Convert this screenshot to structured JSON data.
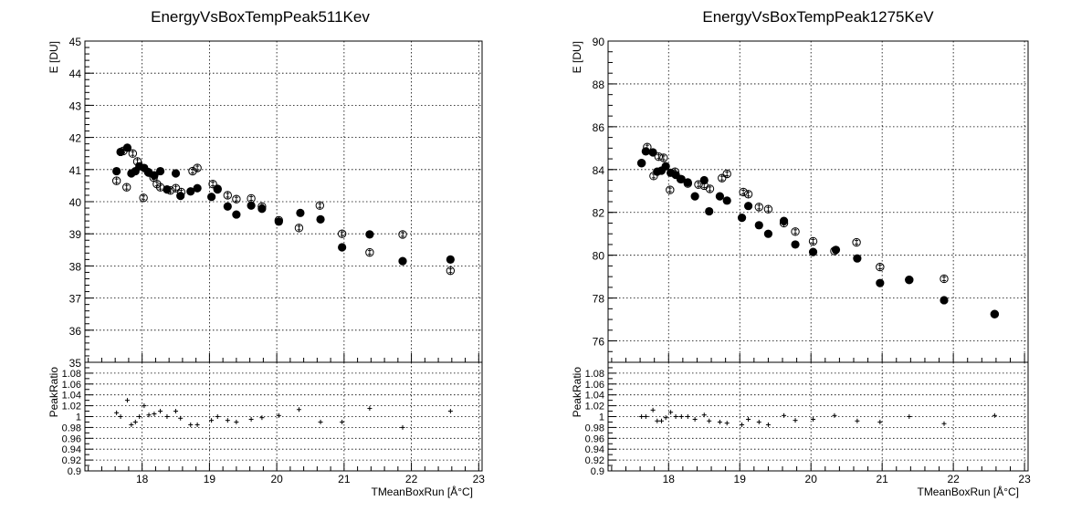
{
  "chart_data": [
    {
      "type": "scatter",
      "title": "EnergyVsBoxTempPeak511Kev",
      "xlabel": "TMeanBoxRun [Å°C]",
      "ylabel": "E [DU]",
      "xlim": [
        17.15,
        23.05
      ],
      "ylim": [
        35,
        45
      ],
      "xticks": [
        "18",
        "19",
        "20",
        "21",
        "22",
        "23"
      ],
      "yticks": [
        "35",
        "36",
        "37",
        "38",
        "39",
        "40",
        "41",
        "42",
        "43",
        "44",
        "45"
      ],
      "series": [
        {
          "marker": "filled-circle",
          "points": [
            [
              17.62,
              40.95
            ],
            [
              17.68,
              41.55
            ],
            [
              17.78,
              41.68
            ],
            [
              17.84,
              40.88
            ],
            [
              17.9,
              40.95
            ],
            [
              17.96,
              41.1
            ],
            [
              18.03,
              41.05
            ],
            [
              18.1,
              40.9
            ],
            [
              18.18,
              40.82
            ],
            [
              18.27,
              40.95
            ],
            [
              18.37,
              40.38
            ],
            [
              18.5,
              40.88
            ],
            [
              18.57,
              40.18
            ],
            [
              18.72,
              40.32
            ],
            [
              18.82,
              40.42
            ],
            [
              19.03,
              40.15
            ],
            [
              19.12,
              40.38
            ],
            [
              19.27,
              39.85
            ],
            [
              19.4,
              39.6
            ],
            [
              19.62,
              39.88
            ],
            [
              19.78,
              39.78
            ],
            [
              20.03,
              39.38
            ],
            [
              20.35,
              39.65
            ],
            [
              20.65,
              39.45
            ],
            [
              20.97,
              38.58
            ],
            [
              21.38,
              38.98
            ],
            [
              21.87,
              38.15
            ],
            [
              22.58,
              38.2
            ]
          ]
        },
        {
          "marker": "open-circle",
          "points": [
            [
              17.62,
              40.65
            ],
            [
              17.72,
              41.58
            ],
            [
              17.77,
              40.45
            ],
            [
              17.86,
              41.5
            ],
            [
              17.93,
              41.25
            ],
            [
              18.02,
              40.12
            ],
            [
              18.09,
              40.92
            ],
            [
              18.17,
              40.75
            ],
            [
              18.22,
              40.55
            ],
            [
              18.27,
              40.45
            ],
            [
              18.42,
              40.35
            ],
            [
              18.5,
              40.42
            ],
            [
              18.58,
              40.3
            ],
            [
              18.75,
              40.95
            ],
            [
              18.82,
              41.05
            ],
            [
              19.05,
              40.55
            ],
            [
              19.12,
              40.4
            ],
            [
              19.27,
              40.2
            ],
            [
              19.4,
              40.08
            ],
            [
              19.62,
              40.1
            ],
            [
              19.78,
              39.85
            ],
            [
              20.03,
              39.42
            ],
            [
              20.33,
              39.18
            ],
            [
              20.64,
              39.88
            ],
            [
              20.97,
              39.0
            ],
            [
              21.38,
              38.42
            ],
            [
              21.87,
              38.98
            ],
            [
              22.58,
              37.85
            ]
          ]
        }
      ],
      "ratio": {
        "ylabel": "PeakRatio",
        "ylim": [
          0.9,
          1.1
        ],
        "yticks": [
          "0.9",
          "0.92",
          "0.94",
          "0.96",
          "0.98",
          "1",
          "1.02",
          "1.04",
          "1.06",
          "1.08"
        ],
        "points": [
          [
            17.62,
            1.007
          ],
          [
            17.68,
            1.0
          ],
          [
            17.78,
            1.03
          ],
          [
            17.84,
            0.985
          ],
          [
            17.9,
            0.99
          ],
          [
            17.96,
            1.0
          ],
          [
            18.03,
            1.02
          ],
          [
            18.1,
            1.003
          ],
          [
            18.18,
            1.005
          ],
          [
            18.27,
            1.01
          ],
          [
            18.37,
            1.0
          ],
          [
            18.5,
            1.01
          ],
          [
            18.57,
            0.997
          ],
          [
            18.72,
            0.985
          ],
          [
            18.82,
            0.985
          ],
          [
            19.03,
            0.993
          ],
          [
            19.12,
            1.0
          ],
          [
            19.27,
            0.993
          ],
          [
            19.4,
            0.99
          ],
          [
            19.62,
            0.995
          ],
          [
            19.78,
            0.998
          ],
          [
            20.03,
            1.002
          ],
          [
            20.33,
            1.013
          ],
          [
            20.65,
            0.99
          ],
          [
            20.97,
            0.99
          ],
          [
            21.38,
            1.015
          ],
          [
            21.87,
            0.98
          ],
          [
            22.58,
            1.01
          ]
        ]
      }
    },
    {
      "type": "scatter",
      "title": "EnergyVsBoxTempPeak1275KeV",
      "xlabel": "TMeanBoxRun [Å°C]",
      "ylabel": "E [DU]",
      "xlim": [
        17.15,
        23.05
      ],
      "ylim": [
        75,
        90
      ],
      "xticks": [
        "18",
        "19",
        "20",
        "21",
        "22",
        "23"
      ],
      "yticks": [
        "76",
        "78",
        "80",
        "82",
        "84",
        "86",
        "88",
        "90"
      ],
      "series": [
        {
          "marker": "filled-circle",
          "points": [
            [
              17.62,
              84.3
            ],
            [
              17.68,
              84.85
            ],
            [
              17.78,
              84.8
            ],
            [
              17.84,
              83.9
            ],
            [
              17.9,
              83.95
            ],
            [
              17.96,
              84.15
            ],
            [
              18.03,
              83.85
            ],
            [
              18.1,
              83.75
            ],
            [
              18.18,
              83.55
            ],
            [
              18.27,
              83.4
            ],
            [
              18.37,
              82.75
            ],
            [
              18.5,
              83.5
            ],
            [
              18.57,
              82.05
            ],
            [
              18.72,
              82.75
            ],
            [
              18.82,
              82.55
            ],
            [
              19.03,
              81.75
            ],
            [
              19.12,
              82.3
            ],
            [
              19.27,
              81.4
            ],
            [
              19.4,
              81.0
            ],
            [
              19.62,
              81.6
            ],
            [
              19.78,
              80.5
            ],
            [
              20.03,
              80.15
            ],
            [
              20.35,
              80.25
            ],
            [
              20.65,
              79.85
            ],
            [
              20.97,
              78.7
            ],
            [
              21.38,
              78.85
            ],
            [
              21.87,
              77.9
            ],
            [
              22.58,
              77.25
            ]
          ]
        },
        {
          "marker": "open-circle",
          "points": [
            [
              17.62,
              84.3
            ],
            [
              17.7,
              85.05
            ],
            [
              17.79,
              83.7
            ],
            [
              17.86,
              84.6
            ],
            [
              17.93,
              84.55
            ],
            [
              18.02,
              83.05
            ],
            [
              18.09,
              83.9
            ],
            [
              18.17,
              83.55
            ],
            [
              18.27,
              83.35
            ],
            [
              18.42,
              83.3
            ],
            [
              18.5,
              83.25
            ],
            [
              18.58,
              83.1
            ],
            [
              18.75,
              83.6
            ],
            [
              18.82,
              83.8
            ],
            [
              19.05,
              82.95
            ],
            [
              19.12,
              82.85
            ],
            [
              19.27,
              82.25
            ],
            [
              19.4,
              82.15
            ],
            [
              19.62,
              81.5
            ],
            [
              19.78,
              81.1
            ],
            [
              20.03,
              80.65
            ],
            [
              20.33,
              80.2
            ],
            [
              20.64,
              80.6
            ],
            [
              20.97,
              79.45
            ],
            [
              21.38,
              78.85
            ],
            [
              21.87,
              78.9
            ],
            [
              22.58,
              77.25
            ]
          ]
        }
      ],
      "ratio": {
        "ylabel": "PeakRatio",
        "ylim": [
          0.9,
          1.1
        ],
        "yticks": [
          "0.9",
          "0.92",
          "0.94",
          "0.96",
          "0.98",
          "1",
          "1.02",
          "1.04",
          "1.06",
          "1.08"
        ],
        "points": [
          [
            17.62,
            1.0
          ],
          [
            17.68,
            1.0
          ],
          [
            17.78,
            1.012
          ],
          [
            17.84,
            0.992
          ],
          [
            17.9,
            0.992
          ],
          [
            17.96,
            0.998
          ],
          [
            18.03,
            1.008
          ],
          [
            18.1,
            1.0
          ],
          [
            18.18,
            1.0
          ],
          [
            18.27,
            1.0
          ],
          [
            18.37,
            0.995
          ],
          [
            18.5,
            1.003
          ],
          [
            18.57,
            0.992
          ],
          [
            18.72,
            0.99
          ],
          [
            18.82,
            0.988
          ],
          [
            19.03,
            0.985
          ],
          [
            19.12,
            0.995
          ],
          [
            19.27,
            0.99
          ],
          [
            19.4,
            0.985
          ],
          [
            19.62,
            1.002
          ],
          [
            19.78,
            0.993
          ],
          [
            20.03,
            0.995
          ],
          [
            20.33,
            1.002
          ],
          [
            20.65,
            0.992
          ],
          [
            20.97,
            0.99
          ],
          [
            21.38,
            1.0
          ],
          [
            21.87,
            0.987
          ],
          [
            22.58,
            1.002
          ]
        ]
      }
    }
  ]
}
